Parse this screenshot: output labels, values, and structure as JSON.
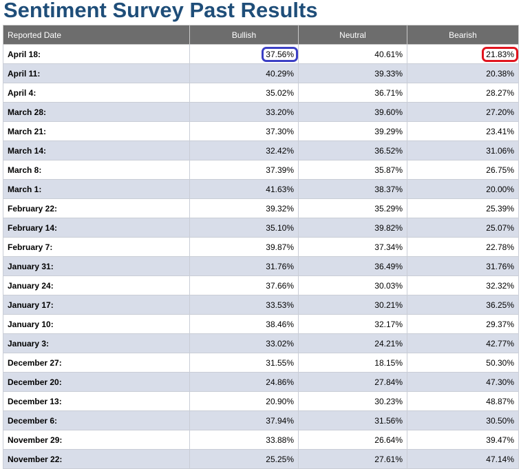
{
  "title": "Sentiment Survey Past Results",
  "colors": {
    "title": "#1f4e79",
    "header_bg": "#6d6d6d",
    "row_alt_bg": "#d8dde9",
    "highlight_bullish": "#3b3fc4",
    "highlight_bearish": "#e0141e"
  },
  "table": {
    "headers": [
      "Reported Date",
      "Bullish",
      "Neutral",
      "Bearish"
    ],
    "rows": [
      {
        "date": "April 18:",
        "bullish": "37.56%",
        "neutral": "40.61%",
        "bearish": "21.83%"
      },
      {
        "date": "April 11:",
        "bullish": "40.29%",
        "neutral": "39.33%",
        "bearish": "20.38%"
      },
      {
        "date": "April 4:",
        "bullish": "35.02%",
        "neutral": "36.71%",
        "bearish": "28.27%"
      },
      {
        "date": "March 28:",
        "bullish": "33.20%",
        "neutral": "39.60%",
        "bearish": "27.20%"
      },
      {
        "date": "March 21:",
        "bullish": "37.30%",
        "neutral": "39.29%",
        "bearish": "23.41%"
      },
      {
        "date": "March 14:",
        "bullish": "32.42%",
        "neutral": "36.52%",
        "bearish": "31.06%"
      },
      {
        "date": "March 8:",
        "bullish": "37.39%",
        "neutral": "35.87%",
        "bearish": "26.75%"
      },
      {
        "date": "March 1:",
        "bullish": "41.63%",
        "neutral": "38.37%",
        "bearish": "20.00%"
      },
      {
        "date": "February 22:",
        "bullish": "39.32%",
        "neutral": "35.29%",
        "bearish": "25.39%"
      },
      {
        "date": "February 14:",
        "bullish": "35.10%",
        "neutral": "39.82%",
        "bearish": "25.07%"
      },
      {
        "date": "February 7:",
        "bullish": "39.87%",
        "neutral": "37.34%",
        "bearish": "22.78%"
      },
      {
        "date": "January 31:",
        "bullish": "31.76%",
        "neutral": "36.49%",
        "bearish": "31.76%"
      },
      {
        "date": "January 24:",
        "bullish": "37.66%",
        "neutral": "30.03%",
        "bearish": "32.32%"
      },
      {
        "date": "January 17:",
        "bullish": "33.53%",
        "neutral": "30.21%",
        "bearish": "36.25%"
      },
      {
        "date": "January 10:",
        "bullish": "38.46%",
        "neutral": "32.17%",
        "bearish": "29.37%"
      },
      {
        "date": "January 3:",
        "bullish": "33.02%",
        "neutral": "24.21%",
        "bearish": "42.77%"
      },
      {
        "date": "December 27:",
        "bullish": "31.55%",
        "neutral": "18.15%",
        "bearish": "50.30%"
      },
      {
        "date": "December 20:",
        "bullish": "24.86%",
        "neutral": "27.84%",
        "bearish": "47.30%"
      },
      {
        "date": "December 13:",
        "bullish": "20.90%",
        "neutral": "30.23%",
        "bearish": "48.87%"
      },
      {
        "date": "December 6:",
        "bullish": "37.94%",
        "neutral": "31.56%",
        "bearish": "30.50%"
      },
      {
        "date": "November 29:",
        "bullish": "33.88%",
        "neutral": "26.64%",
        "bearish": "39.47%"
      },
      {
        "date": "November 22:",
        "bullish": "25.25%",
        "neutral": "27.61%",
        "bearish": "47.14%"
      }
    ]
  }
}
